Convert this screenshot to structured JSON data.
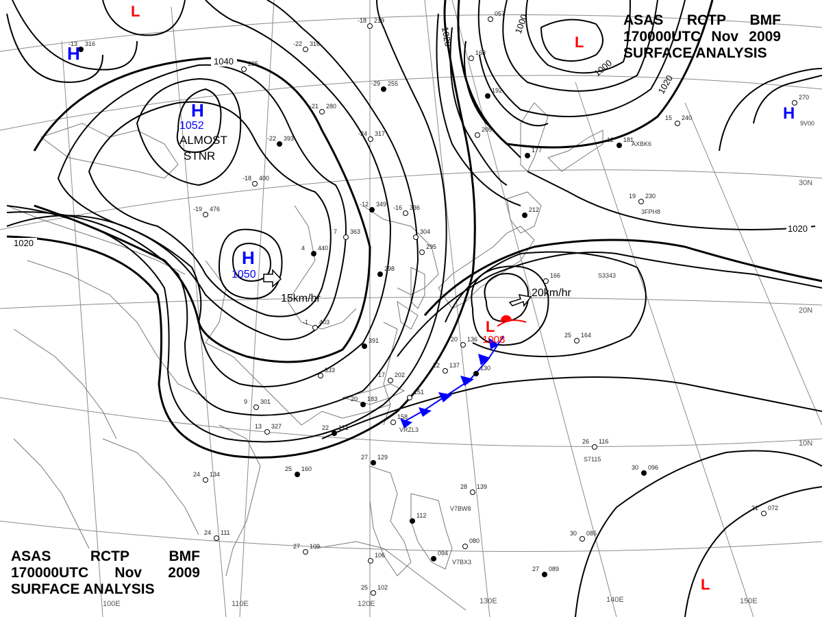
{
  "title": {
    "station": "ASAS",
    "center": "RCTP",
    "agency": "BMF",
    "valid_time": "170000UTC",
    "month": "Nov",
    "year": "2009",
    "product": "SURFACE ANALYSIS"
  },
  "isobar_labels": [
    "1040",
    "1020",
    "1020",
    "1020",
    "1000",
    "1000"
  ],
  "systems": {
    "high_siberia": {
      "symbol": "H",
      "pressure": "1052",
      "note_line1": "ALMOST",
      "note_line2": "STNR"
    },
    "high_china": {
      "symbol": "H",
      "pressure": "1050",
      "motion": "15km/hr"
    },
    "low_front": {
      "symbol": "L",
      "pressure": "1008",
      "motion": "20km/hr"
    },
    "high_nw": {
      "symbol": "H"
    },
    "high_ne": {
      "symbol": "H"
    },
    "low_ne": {
      "symbol": "L"
    },
    "low_top": {
      "symbol": "L"
    },
    "low_se": {
      "symbol": "L"
    }
  },
  "longitude_labels": [
    "100E",
    "110E",
    "120E",
    "130E",
    "140E",
    "150E"
  ],
  "latitude_labels": [
    "30N",
    "20N",
    "10N"
  ],
  "colors": {
    "high": "#0000ff",
    "low": "#ff0000",
    "cold_front": "#0000ff",
    "warm_front": "#ff0000",
    "isobar": "#000000",
    "graticule": "#888888",
    "coast": "#777777"
  },
  "station_plots": [
    {
      "a": "-13",
      "b": "316"
    },
    {
      "a": "-22",
      "b": "316"
    },
    {
      "a": "-18",
      "b": "219"
    },
    {
      "a": "-29",
      "b": "255"
    },
    {
      "a": "-21",
      "b": "280"
    },
    {
      "a": "-24",
      "b": "317"
    },
    {
      "a": "-22",
      "b": "393"
    },
    {
      "a": "-18",
      "b": "400"
    },
    {
      "a": "-19",
      "b": "476"
    },
    {
      "a": "-12",
      "b": "349"
    },
    {
      "a": "-16",
      "b": "336"
    },
    {
      "a": "7",
      "b": "363"
    },
    {
      "a": "4",
      "b": "440"
    },
    {
      "a": "",
      "b": "285"
    },
    {
      "a": "-1",
      "b": "403"
    },
    {
      "a": "",
      "b": "391"
    },
    {
      "a": "",
      "b": "333"
    },
    {
      "a": "17",
      "b": "202"
    },
    {
      "a": "20",
      "b": "183"
    },
    {
      "a": "",
      "b": "151"
    },
    {
      "a": "",
      "b": "158"
    },
    {
      "a": "22",
      "b": "171"
    },
    {
      "a": "20",
      "b": "136"
    },
    {
      "a": "22",
      "b": "137"
    },
    {
      "a": "",
      "b": "130"
    },
    {
      "a": "25",
      "b": "164"
    },
    {
      "a": "19",
      "b": "230"
    },
    {
      "a": "12",
      "b": "181"
    },
    {
      "a": "15",
      "b": "240"
    },
    {
      "a": "",
      "b": "270"
    },
    {
      "a": "",
      "b": "177"
    },
    {
      "a": "",
      "b": "166"
    },
    {
      "a": "",
      "b": "205"
    },
    {
      "a": "",
      "b": "192"
    },
    {
      "a": "",
      "b": "168"
    },
    {
      "a": "",
      "b": "057"
    },
    {
      "a": "27",
      "b": "129"
    },
    {
      "a": "28",
      "b": "139"
    },
    {
      "a": "26",
      "b": "116"
    },
    {
      "a": "30",
      "b": "096"
    },
    {
      "a": "31",
      "b": "072"
    },
    {
      "a": "30",
      "b": "085"
    },
    {
      "a": "27",
      "b": "089"
    },
    {
      "a": "27",
      "b": "109"
    },
    {
      "a": "",
      "b": "080"
    },
    {
      "a": "",
      "b": "094"
    },
    {
      "a": "25",
      "b": "102"
    },
    {
      "a": "",
      "b": "106"
    },
    {
      "a": "",
      "b": "112"
    },
    {
      "a": "24",
      "b": "111"
    },
    {
      "a": "24",
      "b": "134"
    },
    {
      "a": "25",
      "b": "160"
    },
    {
      "a": "9",
      "b": "301"
    },
    {
      "a": "13",
      "b": "327"
    },
    {
      "a": "",
      "b": "298"
    },
    {
      "a": "",
      "b": "295"
    },
    {
      "a": "",
      "b": "304"
    },
    {
      "a": "",
      "b": "212"
    }
  ],
  "ship_ids": [
    "VRZL3",
    "V7BW8",
    "V7BX3",
    "3FPH8",
    "S7115",
    "S3343",
    "AXBK6",
    "9V00"
  ]
}
